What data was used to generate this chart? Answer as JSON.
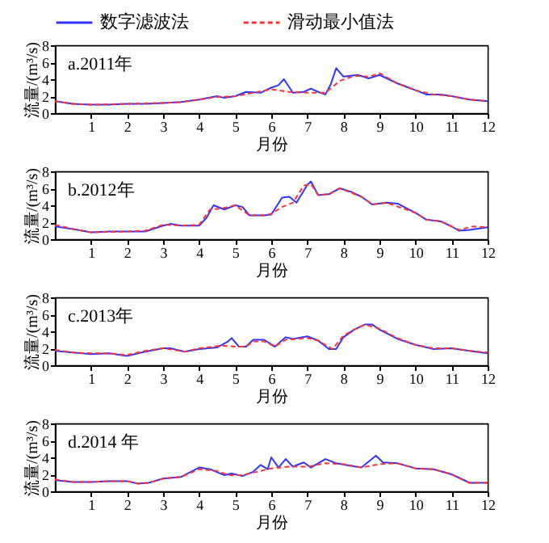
{
  "chart_data": [
    {
      "type": "line",
      "xlabel": "月份",
      "ylabel": "流量/(m³/s)",
      "annotations": [
        "a.2011年"
      ],
      "legend": "top",
      "xlim": [
        0,
        12
      ],
      "xticks": [
        1,
        2,
        3,
        4,
        5,
        6,
        7,
        8,
        9,
        10,
        11,
        12
      ],
      "ylim": [
        0,
        8
      ],
      "yticks": [
        0,
        2,
        4,
        6,
        8
      ],
      "series": [
        {
          "name": "数字滤波法",
          "color": "#3333ff",
          "line_style": "solid",
          "x": [
            0,
            0.5,
            1,
            1.5,
            2,
            2.5,
            3,
            3.5,
            4,
            4.5,
            4.7,
            5,
            5.3,
            5.7,
            6,
            6.2,
            6.35,
            6.6,
            6.9,
            7.1,
            7.3,
            7.5,
            7.65,
            7.8,
            8,
            8.4,
            8.7,
            9,
            9.5,
            10,
            10.3,
            10.7,
            11,
            11.5,
            12
          ],
          "values": [
            1.4,
            1.1,
            1.0,
            1.0,
            1.1,
            1.1,
            1.2,
            1.3,
            1.6,
            2.0,
            1.8,
            2.0,
            2.5,
            2.4,
            3.0,
            3.3,
            4.0,
            2.4,
            2.5,
            2.9,
            2.5,
            2.2,
            3.4,
            5.3,
            4.3,
            4.5,
            4.1,
            4.5,
            3.5,
            2.7,
            2.2,
            2.2,
            2.0,
            1.6,
            1.4
          ]
        },
        {
          "name": "滑动最小值法",
          "color": "#ff3333",
          "line_style": "dashed",
          "x": [
            0,
            0.5,
            1,
            2,
            3,
            3.5,
            4,
            4.5,
            5,
            5.5,
            6,
            6.5,
            7,
            7.5,
            7.9,
            8.3,
            8.7,
            9,
            9.5,
            10,
            10.5,
            11,
            11.5,
            12
          ],
          "values": [
            1.4,
            1.1,
            1.0,
            1.1,
            1.2,
            1.3,
            1.6,
            1.9,
            2.0,
            2.4,
            2.8,
            2.5,
            2.4,
            2.4,
            3.8,
            4.4,
            4.3,
            4.7,
            3.5,
            2.7,
            2.2,
            2.0,
            1.6,
            1.4
          ]
        }
      ]
    },
    {
      "type": "line",
      "xlabel": "月份",
      "ylabel": "流量/(m³/s)",
      "annotations": [
        "b.2012年"
      ],
      "xlim": [
        0,
        12
      ],
      "xticks": [
        1,
        2,
        3,
        4,
        5,
        6,
        7,
        8,
        9,
        10,
        11,
        12
      ],
      "ylim": [
        0,
        8
      ],
      "yticks": [
        0,
        2,
        4,
        6,
        8
      ],
      "series": [
        {
          "color": "#3333ff",
          "line_style": "solid",
          "x": [
            0,
            0.5,
            1,
            1.5,
            2,
            2.5,
            3,
            3.2,
            3.5,
            4,
            4.2,
            4.4,
            4.7,
            5,
            5.2,
            5.4,
            5.8,
            6,
            6.3,
            6.5,
            6.7,
            7,
            7.1,
            7.3,
            7.6,
            7.9,
            8.2,
            8.5,
            8.8,
            9.2,
            9.5,
            10,
            10.3,
            10.7,
            11,
            11.2,
            11.5,
            12
          ],
          "values": [
            1.5,
            1.2,
            0.8,
            0.9,
            0.9,
            0.9,
            1.6,
            1.8,
            1.6,
            1.6,
            2.5,
            4.0,
            3.5,
            4.0,
            3.8,
            2.8,
            2.8,
            2.9,
            4.9,
            5.0,
            4.3,
            6.4,
            6.8,
            5.2,
            5.3,
            6.0,
            5.6,
            5.0,
            4.1,
            4.3,
            4.2,
            3.1,
            2.3,
            2.1,
            1.5,
            1.0,
            1.1,
            1.4
          ]
        },
        {
          "color": "#ff3333",
          "line_style": "dashed",
          "x": [
            0,
            0.5,
            1,
            2,
            2.5,
            3,
            3.5,
            4,
            4.3,
            4.6,
            5,
            5.4,
            5.8,
            6,
            6.3,
            6.6,
            6.9,
            7.1,
            7.3,
            7.6,
            7.9,
            8.5,
            8.8,
            9.2,
            10,
            10.3,
            10.7,
            11,
            11.2,
            11.6,
            12
          ],
          "values": [
            1.7,
            1.2,
            0.8,
            0.9,
            1.0,
            1.7,
            1.6,
            1.7,
            3.5,
            3.6,
            4.0,
            2.8,
            2.8,
            3.0,
            3.8,
            4.3,
            6.3,
            6.5,
            5.2,
            5.3,
            6.0,
            5.0,
            4.1,
            4.3,
            3.1,
            2.3,
            2.1,
            1.5,
            1.1,
            1.5,
            1.4
          ]
        }
      ]
    },
    {
      "type": "line",
      "xlabel": "月份",
      "ylabel": "流量/(m³/s)",
      "annotations": [
        "c.2013年"
      ],
      "xlim": [
        0,
        12
      ],
      "xticks": [
        1,
        2,
        3,
        4,
        5,
        6,
        7,
        8,
        9,
        10,
        11,
        12
      ],
      "ylim": [
        0,
        8
      ],
      "yticks": [
        0,
        2,
        4,
        6,
        8
      ],
      "series": [
        {
          "color": "#3333ff",
          "line_style": "solid",
          "x": [
            0,
            0.5,
            1,
            1.5,
            2,
            2.5,
            3,
            3.2,
            3.6,
            4,
            4.5,
            4.8,
            4.9,
            5.1,
            5.3,
            5.5,
            5.8,
            6.1,
            6.4,
            6.6,
            7,
            7.3,
            7.6,
            7.8,
            8,
            8.3,
            8.6,
            8.8,
            9,
            9.5,
            10,
            10.5,
            11,
            11.5,
            12
          ],
          "values": [
            1.7,
            1.5,
            1.3,
            1.4,
            1.1,
            1.6,
            2.0,
            2.0,
            1.6,
            1.9,
            2.1,
            2.8,
            3.2,
            2.2,
            2.2,
            3.0,
            3.0,
            2.2,
            3.3,
            3.1,
            3.4,
            2.9,
            1.9,
            1.9,
            3.3,
            4.2,
            4.8,
            4.8,
            4.2,
            3.1,
            2.4,
            1.9,
            2.0,
            1.7,
            1.4
          ]
        },
        {
          "color": "#ff3333",
          "line_style": "dashed",
          "x": [
            0,
            0.5,
            1,
            1.5,
            2,
            2.5,
            3,
            3.6,
            4,
            4.6,
            5,
            5.3,
            5.5,
            5.8,
            6.1,
            6.4,
            7,
            7.3,
            7.7,
            8,
            8.3,
            8.6,
            9,
            9.5,
            10,
            10.5,
            11,
            11.5,
            12
          ],
          "values": [
            1.8,
            1.5,
            1.4,
            1.4,
            1.2,
            1.7,
            2.0,
            1.6,
            2.0,
            2.3,
            2.2,
            2.2,
            2.8,
            2.8,
            2.2,
            3.0,
            3.2,
            2.9,
            1.9,
            3.5,
            4.2,
            4.8,
            4.3,
            3.2,
            2.4,
            2.0,
            2.0,
            1.7,
            1.5
          ]
        }
      ]
    },
    {
      "type": "line",
      "xlabel": "月份",
      "ylabel": "流量/(m³/s)",
      "annotations": [
        "d.2014 年"
      ],
      "xlim": [
        0,
        12
      ],
      "xticks": [
        1,
        2,
        3,
        4,
        5,
        6,
        7,
        8,
        9,
        10,
        11,
        12
      ],
      "ylim": [
        0,
        8
      ],
      "yticks": [
        0,
        2,
        4,
        6,
        8
      ],
      "series": [
        {
          "color": "#3333ff",
          "line_style": "solid",
          "x": [
            0,
            0.5,
            1,
            1.5,
            2,
            2.3,
            2.6,
            3,
            3.5,
            4,
            4.3,
            4.7,
            4.9,
            5.2,
            5.5,
            5.7,
            5.9,
            6,
            6.2,
            6.4,
            6.6,
            6.9,
            7.1,
            7.5,
            7.8,
            8.2,
            8.5,
            8.9,
            9.1,
            9.5,
            10,
            10.5,
            11,
            11.5,
            12
          ],
          "values": [
            1.3,
            1.1,
            1.1,
            1.2,
            1.2,
            0.9,
            1.0,
            1.5,
            1.7,
            2.8,
            2.6,
            1.9,
            2.1,
            1.8,
            2.3,
            3.1,
            2.6,
            4.0,
            2.8,
            3.8,
            2.9,
            3.4,
            2.8,
            3.8,
            3.3,
            3.0,
            2.8,
            4.2,
            3.4,
            3.3,
            2.7,
            2.6,
            2.0,
            1.0,
            1.0
          ]
        },
        {
          "color": "#ff3333",
          "line_style": "dashed",
          "x": [
            0,
            0.5,
            1,
            1.5,
            2,
            2.3,
            2.6,
            3,
            3.5,
            4,
            4.5,
            4.8,
            5.2,
            5.6,
            6,
            6.5,
            7,
            7.5,
            8,
            8.5,
            9,
            9.5,
            10,
            10.5,
            11,
            11.5,
            12
          ],
          "values": [
            1.4,
            1.1,
            1.1,
            1.2,
            1.2,
            0.9,
            1.0,
            1.5,
            1.7,
            2.6,
            2.4,
            1.9,
            1.9,
            2.3,
            2.7,
            2.9,
            2.9,
            3.3,
            3.2,
            2.8,
            3.2,
            3.3,
            2.7,
            2.6,
            2.0,
            1.0,
            1.0
          ]
        }
      ]
    }
  ]
}
